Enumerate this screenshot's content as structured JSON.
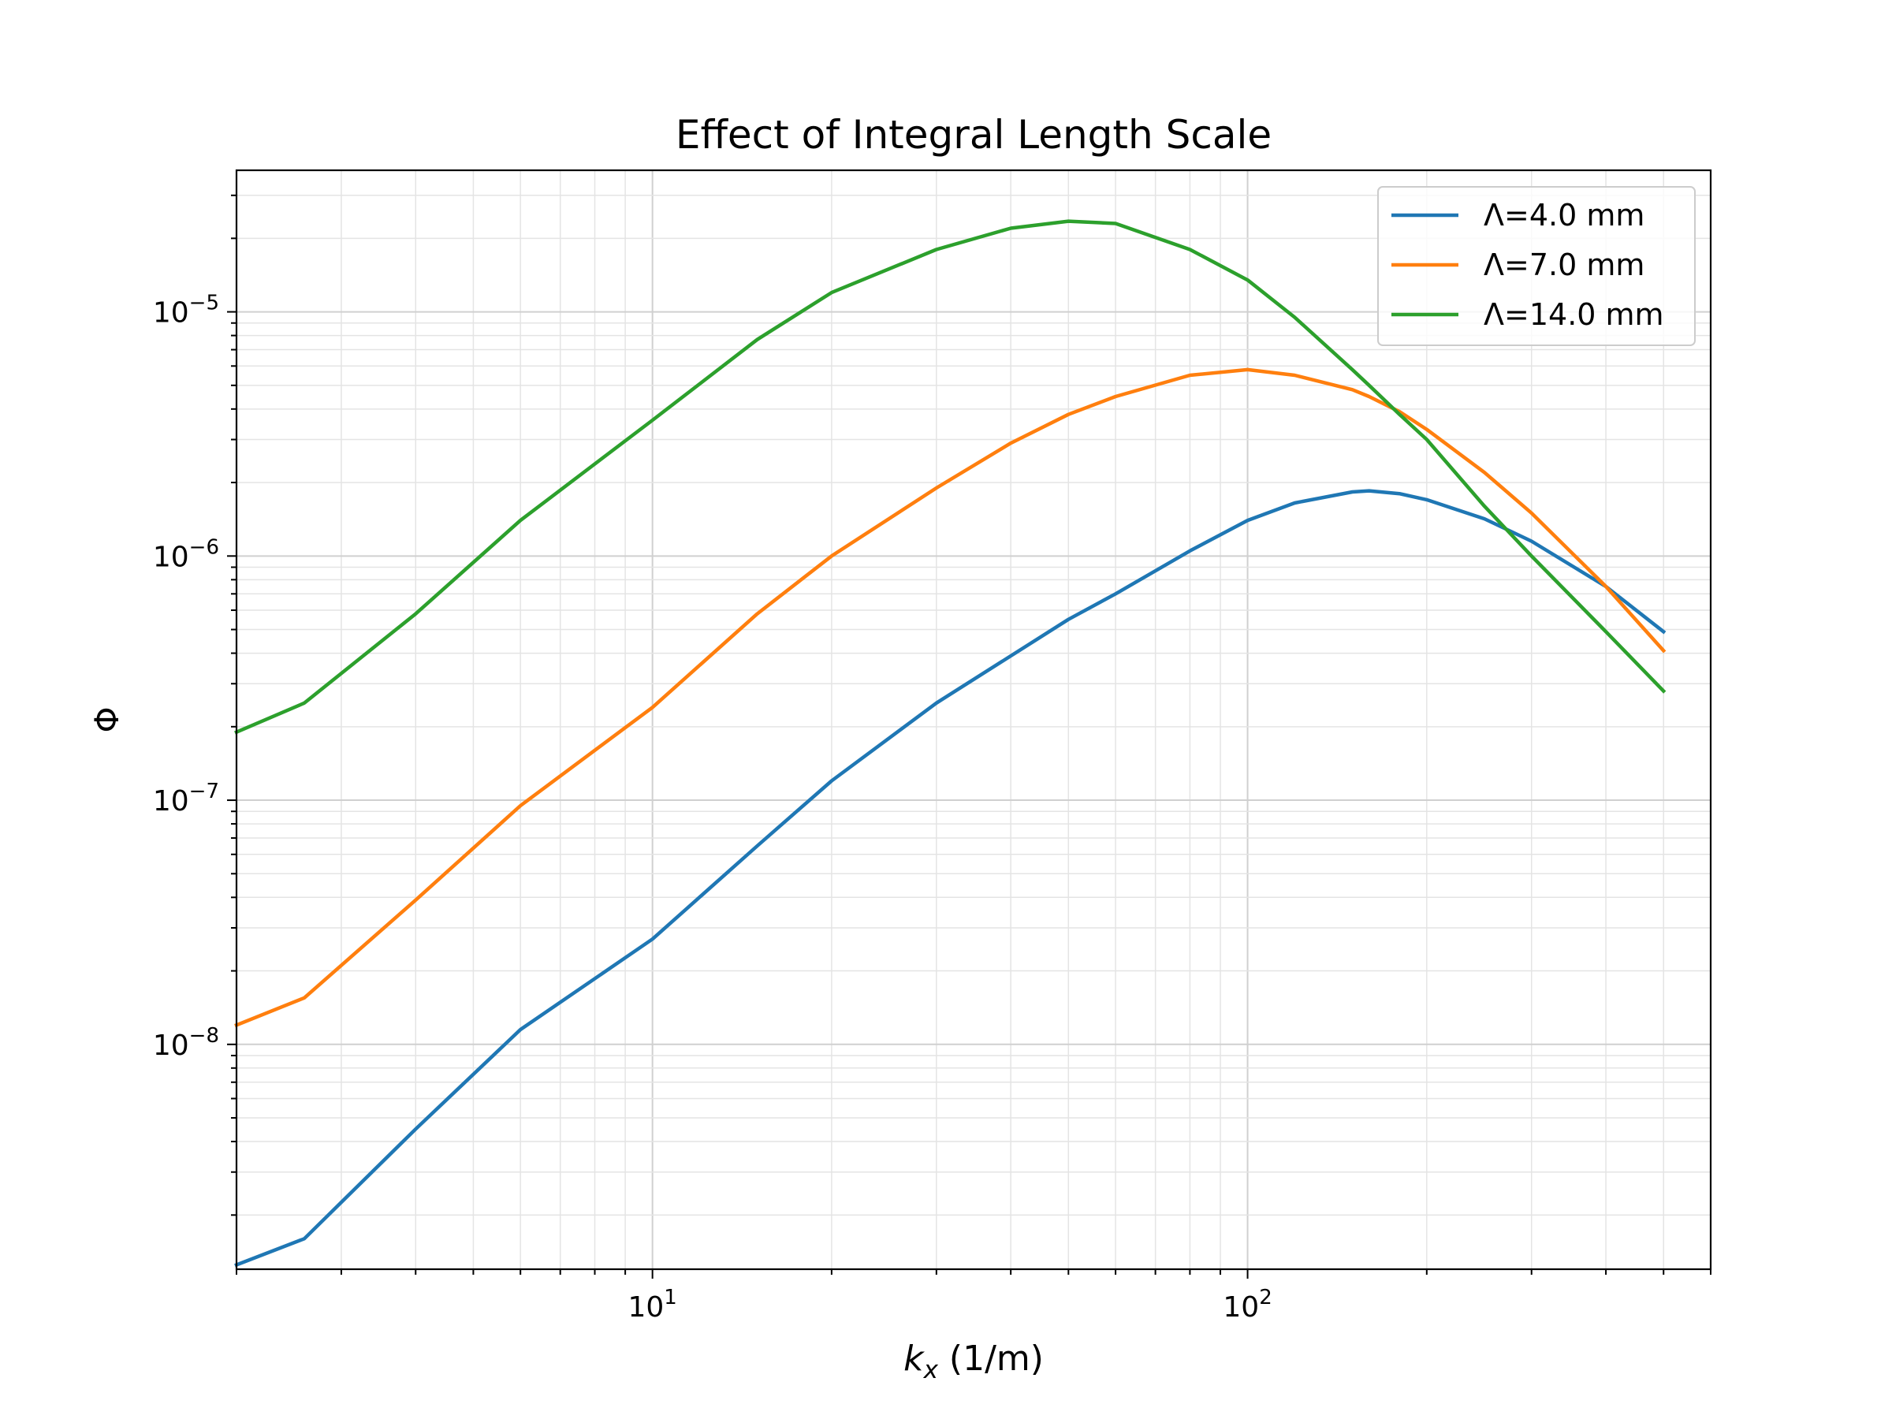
{
  "chart_data": {
    "type": "line",
    "title": "Effect of Integral Length Scale",
    "xlabel": "k_x (1/m)",
    "ylabel": "Φ",
    "xscale": "log",
    "yscale": "log",
    "xlim": [
      2.0,
      600
    ],
    "ylim": [
      1.2e-09,
      3.8e-05
    ],
    "grid": "major and minor",
    "legend_position": "top-right",
    "x_ticks": [
      {
        "value": 10,
        "label": "10",
        "exp": "1"
      },
      {
        "value": 100,
        "label": "10",
        "exp": "2"
      }
    ],
    "y_ticks": [
      {
        "value": 1e-08,
        "label": "10",
        "exp": "−8"
      },
      {
        "value": 1e-07,
        "label": "10",
        "exp": "−7"
      },
      {
        "value": 1e-06,
        "label": "10",
        "exp": "−6"
      },
      {
        "value": 1e-05,
        "label": "10",
        "exp": "−5"
      }
    ],
    "x": [
      2.0,
      2.6,
      4,
      6,
      10,
      15,
      20,
      30,
      40,
      50,
      60,
      80,
      100,
      120,
      150,
      160,
      180,
      200,
      250,
      300,
      400,
      500
    ],
    "series": [
      {
        "name": "Λ=4.0 mm",
        "color": "#1f77b4",
        "values": [
          1.25e-09,
          1.6e-09,
          4.5e-09,
          1.15e-08,
          2.7e-08,
          6.5e-08,
          1.2e-07,
          2.5e-07,
          3.9e-07,
          5.5e-07,
          7e-07,
          1.05e-06,
          1.4e-06,
          1.65e-06,
          1.83e-06,
          1.85e-06,
          1.8e-06,
          1.7e-06,
          1.42e-06,
          1.15e-06,
          7.5e-07,
          4.9e-07
        ]
      },
      {
        "name": "Λ=7.0 mm",
        "color": "#ff7f0e",
        "values": [
          1.2e-08,
          1.55e-08,
          3.9e-08,
          9.5e-08,
          2.4e-07,
          5.8e-07,
          1e-06,
          1.9e-06,
          2.9e-06,
          3.8e-06,
          4.5e-06,
          5.5e-06,
          5.8e-06,
          5.5e-06,
          4.8e-06,
          4.5e-06,
          3.9e-06,
          3.3e-06,
          2.2e-06,
          1.5e-06,
          7.5e-07,
          4.1e-07
        ]
      },
      {
        "name": "Λ=14.0 mm",
        "color": "#2ca02c",
        "values": [
          1.9e-07,
          2.5e-07,
          5.8e-07,
          1.4e-06,
          3.6e-06,
          7.7e-06,
          1.2e-05,
          1.8e-05,
          2.2e-05,
          2.35e-05,
          2.3e-05,
          1.8e-05,
          1.35e-05,
          9.5e-06,
          5.8e-06,
          5e-06,
          3.8e-06,
          3e-06,
          1.6e-06,
          1e-06,
          4.9e-07,
          2.8e-07
        ]
      }
    ]
  }
}
